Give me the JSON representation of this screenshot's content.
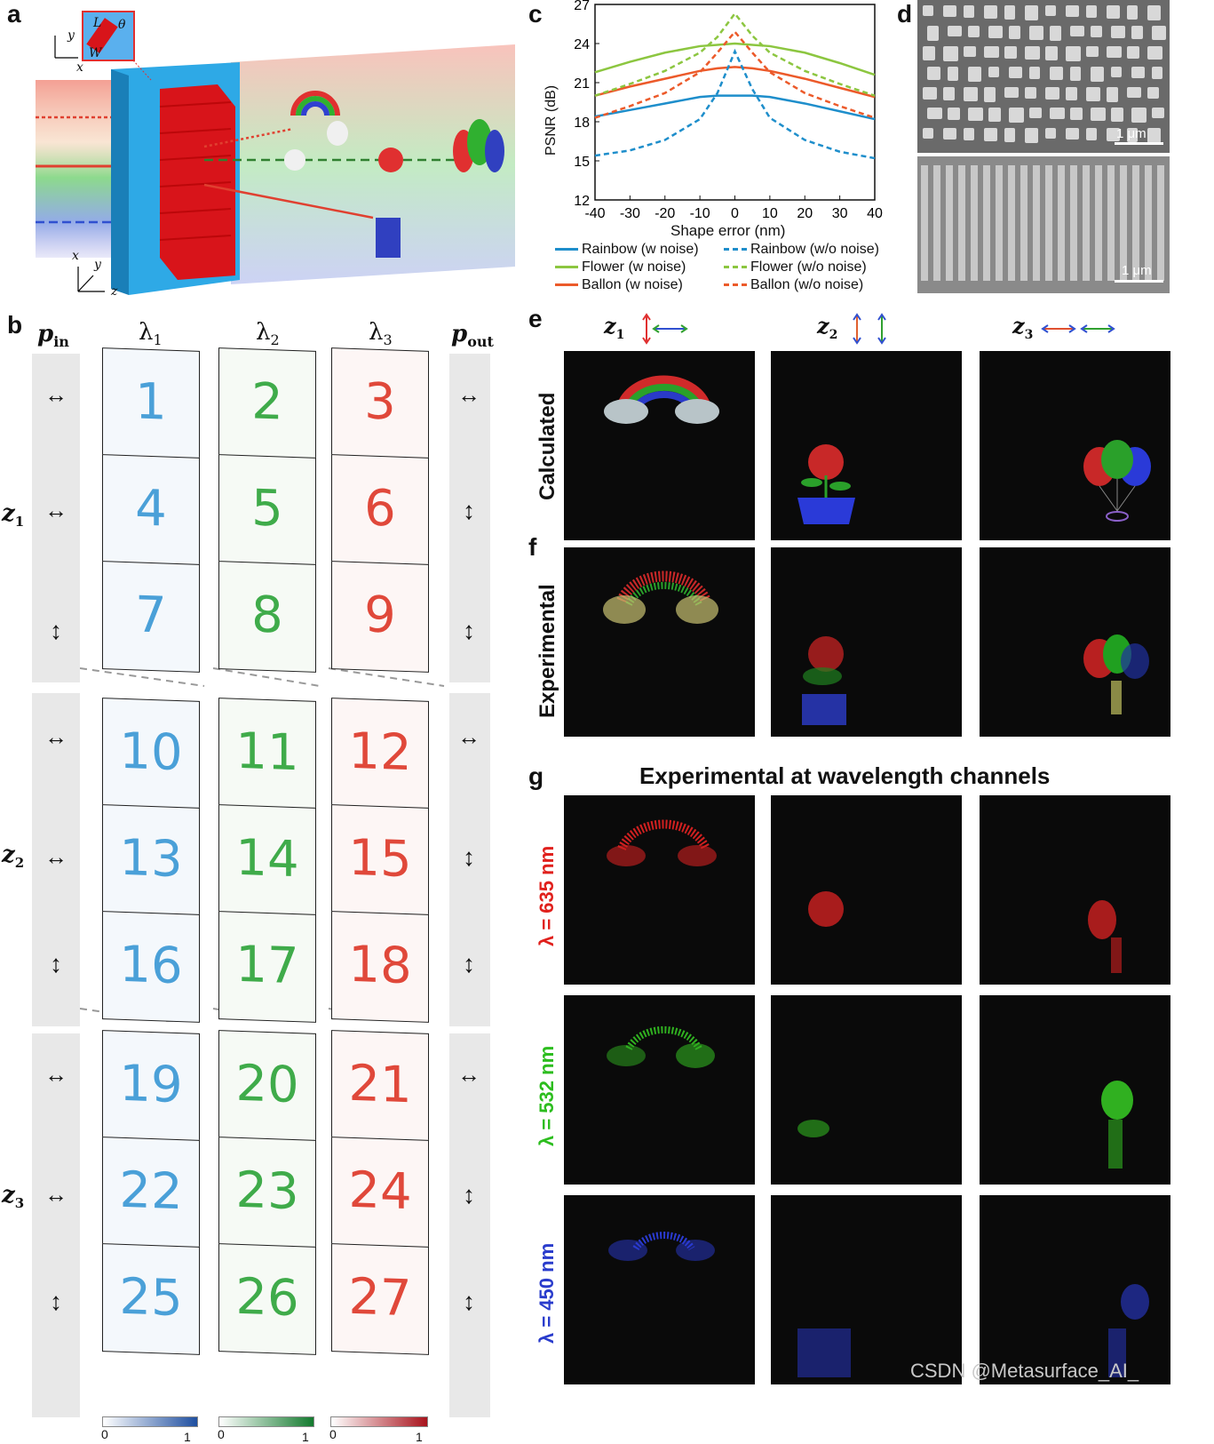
{
  "panels": {
    "a": "a",
    "b": "b",
    "c": "c",
    "d": "d",
    "e": "e",
    "f": "f",
    "g": "g"
  },
  "panel_a": {
    "inset": {
      "L": "L",
      "W": "W",
      "theta": "θ"
    },
    "axes_top": {
      "x": "x",
      "y": "y"
    },
    "axes_bottom": {
      "x": "x",
      "y": "y",
      "z": "z"
    }
  },
  "panel_b": {
    "col_headers": {
      "pin": "p",
      "pin_sub": "in",
      "l1": "λ",
      "l1_sub": "1",
      "l2": "λ",
      "l2_sub": "2",
      "l3": "λ",
      "l3_sub": "3",
      "pout": "p",
      "pout_sub": "out"
    },
    "row_labels": [
      {
        "z": "z",
        "sub": "1"
      },
      {
        "z": "z",
        "sub": "2"
      },
      {
        "z": "z",
        "sub": "3"
      }
    ],
    "numbers": [
      "1",
      "2",
      "3",
      "4",
      "5",
      "6",
      "7",
      "8",
      "9",
      "10",
      "11",
      "12",
      "13",
      "14",
      "15",
      "16",
      "17",
      "18",
      "19",
      "20",
      "21",
      "22",
      "23",
      "24",
      "25",
      "26",
      "27"
    ],
    "colorbar": {
      "min": "0",
      "max": "1"
    }
  },
  "panel_d": {
    "scale1": "1 μm",
    "scale2": "1 μm"
  },
  "panel_e": {
    "row_label": "Calculated",
    "cols": [
      {
        "z": "z",
        "sub": "1"
      },
      {
        "z": "z",
        "sub": "2"
      },
      {
        "z": "z",
        "sub": "3"
      }
    ]
  },
  "panel_f": {
    "row_label": "Experimental"
  },
  "panel_g": {
    "title": "Experimental at wavelength channels",
    "rows": [
      {
        "label": "λ = 635 nm",
        "color": "#e0201c"
      },
      {
        "label": "λ = 532 nm",
        "color": "#2cbd1e"
      },
      {
        "label": "λ = 450 nm",
        "color": "#2a3ccc"
      }
    ]
  },
  "watermark": "CSDN @Metasurface_AI_",
  "chart_data": {
    "type": "line",
    "xlabel": "Shape error (nm)",
    "ylabel": "PSNR (dB)",
    "xlim": [
      -40,
      40
    ],
    "ylim": [
      12,
      27
    ],
    "xticks": [
      -40,
      -30,
      -20,
      -10,
      0,
      10,
      20,
      30,
      40
    ],
    "yticks": [
      12,
      15,
      18,
      21,
      24,
      27
    ],
    "x": [
      -40,
      -30,
      -20,
      -10,
      -5,
      0,
      5,
      10,
      20,
      30,
      40
    ],
    "series": [
      {
        "name": "Rainbow (w noise)",
        "color": "#1e8ecb",
        "dash": false,
        "values": [
          18.4,
          18.9,
          19.4,
          19.9,
          20.0,
          20.0,
          20.0,
          19.9,
          19.4,
          18.8,
          18.2
        ]
      },
      {
        "name": "Flower (w noise)",
        "color": "#8cc640",
        "dash": false,
        "values": [
          21.8,
          22.6,
          23.3,
          23.8,
          23.9,
          24.0,
          23.9,
          23.8,
          23.3,
          22.5,
          21.6
        ]
      },
      {
        "name": "Ballon (w noise)",
        "color": "#ec5a2a",
        "dash": false,
        "values": [
          20.0,
          20.7,
          21.3,
          21.9,
          22.1,
          22.2,
          22.1,
          21.9,
          21.3,
          20.6,
          19.9
        ]
      },
      {
        "name": "Rainbow (w/o noise)",
        "color": "#1e8ecb",
        "dash": true,
        "values": [
          15.4,
          15.8,
          16.6,
          18.2,
          20.2,
          23.4,
          20.5,
          18.3,
          16.6,
          15.7,
          15.2
        ]
      },
      {
        "name": "Flower (w/o noise)",
        "color": "#8cc640",
        "dash": true,
        "values": [
          20.0,
          20.9,
          21.9,
          23.3,
          24.5,
          26.3,
          24.6,
          23.3,
          21.9,
          20.9,
          20.0
        ]
      },
      {
        "name": "Ballon (w/o noise)",
        "color": "#ec5a2a",
        "dash": true,
        "values": [
          18.3,
          19.2,
          20.2,
          21.8,
          23.3,
          24.9,
          23.3,
          21.8,
          20.2,
          19.2,
          18.3
        ]
      }
    ]
  }
}
